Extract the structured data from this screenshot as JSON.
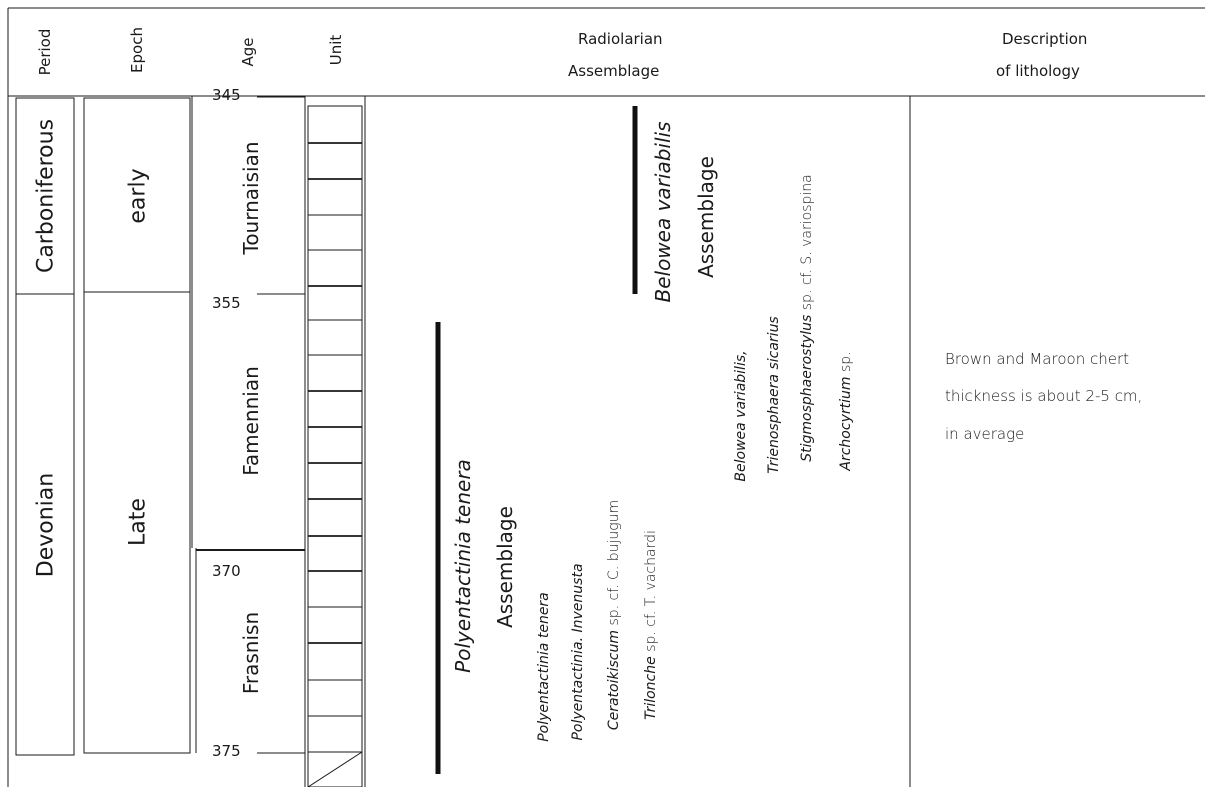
{
  "headers": {
    "period": "Period",
    "epoch": "Epoch",
    "age": "Age",
    "unit": "Unit",
    "radiolarian_line1": "Radiolarian",
    "radiolarian_line2": "Assemblage",
    "description_line1": "Description",
    "description_line2": "of lithology"
  },
  "periods": [
    "Carboniferous",
    "Devonian"
  ],
  "epochs": [
    "early",
    "Late"
  ],
  "ages": [
    "Tournaisian",
    "Famennian",
    "Frasnisn"
  ],
  "age_ticks": [
    "345",
    "355",
    "370",
    "375"
  ],
  "assemblages": {
    "belowea": {
      "name": "Belowea variabilis",
      "label": "Assemblage",
      "species": [
        {
          "genus": "Belowea variabilis,",
          "rest": ""
        },
        {
          "genus": "Trienosphaera sicarius",
          "rest": ""
        },
        {
          "genus": "Stigmosphaerostylus",
          "rest": " sp. cf. S. variospina"
        },
        {
          "genus": "Archocyrtium",
          "rest": " sp."
        }
      ]
    },
    "polyentactinia": {
      "name": "Polyentactinia tenera",
      "label": "Assemblage",
      "species": [
        {
          "genus": "Polyentactinia tenera",
          "rest": ""
        },
        {
          "genus": "Polyentactinia. Invenusta",
          "rest": ""
        },
        {
          "genus": "Ceratoikiscum",
          "rest": " sp. cf. C. bujugum"
        },
        {
          "genus": "Trilonche",
          "rest": " sp. cf. T. vachardi"
        }
      ]
    }
  },
  "lithology": [
    "Brown and Maroon chert",
    "thickness is about 2-5 cm,",
    "in average"
  ]
}
